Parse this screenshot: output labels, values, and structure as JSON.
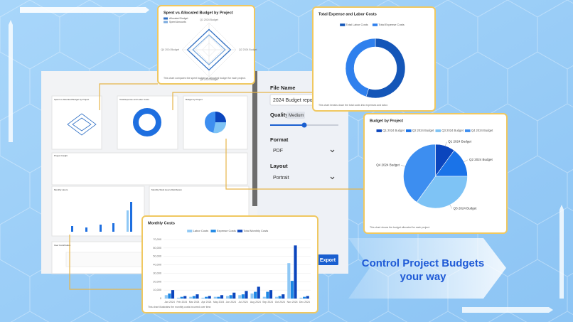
{
  "headline": [
    "Control Project Budgets",
    "your way"
  ],
  "dashboard": {
    "cards": [
      "Spent vs Allocated Budget by Project",
      "Total Expense and Labor Costs",
      "Budget by Project",
      "Project Insight",
      "Monthly Hours",
      "Monthly Work Hours Distribution",
      "User Contribution"
    ]
  },
  "export_panel": {
    "file_name_label": "File Name",
    "file_name": "2024 Budget report",
    "quality_label": "Quality",
    "quality": "Medium",
    "format_label": "Format",
    "format": "PDF",
    "layout_label": "Layout",
    "layout": "Portrait",
    "button": "Export"
  },
  "chart_data": [
    {
      "type": "radar",
      "title": "Spent vs Allocated Budget by Project",
      "categories": [
        "Q1 2024 Budget",
        "Q2 2024 Budget",
        "Q3 2024 Budget",
        "Q4 2024 Budget"
      ],
      "series": [
        {
          "name": "Allocated Budget",
          "color": "#2f6fc4",
          "values": [
            75,
            80,
            75,
            80
          ]
        },
        {
          "name": "Spent Amounts",
          "color": "#7aa9dd",
          "values": [
            55,
            60,
            55,
            60
          ]
        }
      ],
      "rlim": [
        0,
        100
      ],
      "note": "This chart compares the spent budget vs allocated budget for each project."
    },
    {
      "type": "donut",
      "title": "Total Expense and Labor Costs",
      "categories": [
        "Total Labor Costs",
        "Total Expense Costs"
      ],
      "values": [
        55,
        45
      ],
      "colors": [
        "#1456b8",
        "#2f80ed"
      ],
      "note": "This chart breaks down the total costs into expenses and labor."
    },
    {
      "type": "pie",
      "title": "Budget by Project",
      "categories": [
        "Q1 2024 Budget",
        "Q2 2024 Budget",
        "Q3 2024 Budget",
        "Q4 2024 Budget"
      ],
      "values": [
        10,
        15,
        35,
        40
      ],
      "colors": [
        "#0b45bd",
        "#1a73e8",
        "#7ec3f5",
        "#3d8ef0"
      ],
      "note": "This chart shows the budget allocated for each project."
    },
    {
      "type": "bar",
      "title": "Monthly Costs",
      "categories": [
        "Jan 2024",
        "Feb 2024",
        "Mar 2024",
        "Apr 2024",
        "May 2024",
        "Jun 2024",
        "Jul 2024",
        "Aug 2024",
        "Sep 2024",
        "Oct 2024",
        "Nov 2024",
        "Dec 2024"
      ],
      "series": [
        {
          "name": "Labor Costs",
          "color": "#8fc8f5",
          "values": [
            4000,
            1000,
            2000,
            1000,
            2000,
            3000,
            4000,
            6000,
            2000,
            2000,
            42000,
            1000
          ]
        },
        {
          "name": "Expense Costs",
          "color": "#1e88e5",
          "values": [
            6000,
            2000,
            3000,
            2000,
            2000,
            4000,
            5000,
            8000,
            8000,
            3000,
            21000,
            2000
          ]
        },
        {
          "name": "Total Monthly Costs",
          "color": "#0b45bd",
          "values": [
            10000,
            3000,
            5000,
            3000,
            4000,
            7000,
            9000,
            14000,
            10000,
            5000,
            63000,
            3000
          ]
        }
      ],
      "ylim": [
        0,
        70000
      ],
      "yticks": [
        0,
        {
          "value": 10000,
          "label": "10,000"
        },
        {
          "value": 20000,
          "label": "20,000"
        },
        {
          "value": 30000,
          "label": "30,000"
        },
        {
          "value": 40000,
          "label": "40,000"
        },
        {
          "value": 50000,
          "label": "50,000"
        },
        {
          "value": 60000,
          "label": "60,000"
        },
        {
          "value": 70000,
          "label": "70,000"
        }
      ],
      "grid": true,
      "note": "This chart illustrates the monthly costs incurred over time."
    }
  ]
}
